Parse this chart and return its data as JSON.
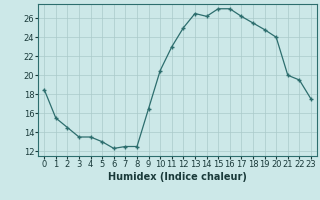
{
  "x": [
    0,
    1,
    2,
    3,
    4,
    5,
    6,
    7,
    8,
    9,
    10,
    11,
    12,
    13,
    14,
    15,
    16,
    17,
    18,
    19,
    20,
    21,
    22,
    23
  ],
  "y": [
    18.5,
    15.5,
    14.5,
    13.5,
    13.5,
    13.0,
    12.3,
    12.5,
    12.5,
    16.5,
    20.5,
    23.0,
    25.0,
    26.5,
    26.2,
    27.0,
    27.0,
    26.2,
    25.5,
    24.8,
    24.0,
    20.0,
    19.5,
    17.5
  ],
  "bg_color": "#cce8e8",
  "line_color": "#2d6e6e",
  "marker_color": "#2d6e6e",
  "grid_color": "#aacaca",
  "xlabel": "Humidex (Indice chaleur)",
  "ylim": [
    11.5,
    27.5
  ],
  "xlim": [
    -0.5,
    23.5
  ],
  "yticks": [
    12,
    14,
    16,
    18,
    20,
    22,
    24,
    26
  ],
  "xticks": [
    0,
    1,
    2,
    3,
    4,
    5,
    6,
    7,
    8,
    9,
    10,
    11,
    12,
    13,
    14,
    15,
    16,
    17,
    18,
    19,
    20,
    21,
    22,
    23
  ],
  "xtick_labels": [
    "0",
    "1",
    "2",
    "3",
    "4",
    "5",
    "6",
    "7",
    "8",
    "9",
    "10",
    "11",
    "12",
    "13",
    "14",
    "15",
    "16",
    "17",
    "18",
    "19",
    "20",
    "21",
    "22",
    "23"
  ],
  "label_fontsize": 7,
  "tick_fontsize": 6
}
